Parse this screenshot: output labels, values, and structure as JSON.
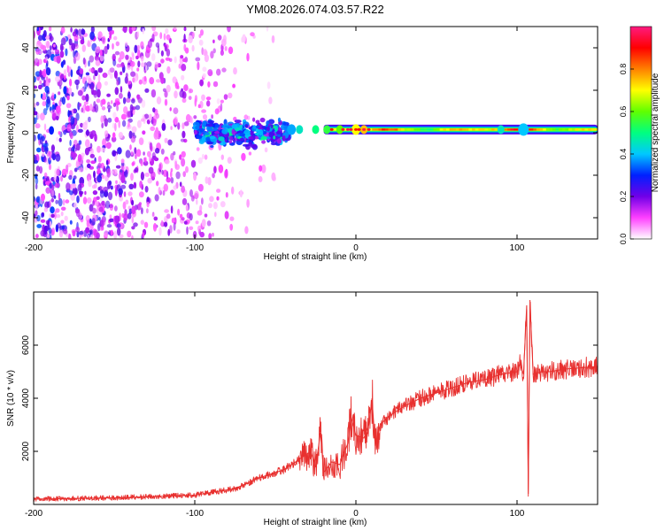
{
  "title": "YM08.2026.074.03.57.R22",
  "chart_data": [
    {
      "type": "heatmap",
      "xlabel": "Height of straight line (km)",
      "ylabel": "Frequency (Hz)",
      "xlim": [
        -200,
        150
      ],
      "ylim": [
        -50,
        50
      ],
      "xticks": [
        -200,
        -100,
        0,
        100
      ],
      "yticks": [
        -40,
        -20,
        0,
        20,
        40
      ],
      "xtick_labels": [
        "-200",
        "-100",
        "0",
        "100"
      ],
      "ytick_labels": [
        "-40",
        "-20",
        "0",
        "20",
        "40"
      ],
      "colorbar": {
        "label": "Normalized spectral amplitude",
        "range": [
          0,
          1
        ],
        "ticks": [
          0.0,
          0.2,
          0.4,
          0.6,
          0.8
        ],
        "tick_labels": [
          "0.0",
          "0.2",
          "0.4",
          "0.6",
          "0.8"
        ],
        "colors": [
          "#ffffff",
          "#ff40ff",
          "#7000e8",
          "#0020ff",
          "#00c8ff",
          "#00ff80",
          "#60ff00",
          "#ffff00",
          "#ff8000",
          "#ff0000",
          "#ff1a80"
        ]
      },
      "features": [
        {
          "name": "scattered noise",
          "x_range": [
            -200,
            -40
          ],
          "freq_range": [
            -50,
            50
          ],
          "amplitude": 0.15
        },
        {
          "name": "onset burst",
          "x_range": [
            -100,
            -40
          ],
          "freq_range": [
            -8,
            8
          ],
          "amplitude": 0.35
        },
        {
          "name": "carrier line",
          "x_range": [
            -20,
            150
          ],
          "center_freq": 1.5,
          "amplitude": 0.9
        }
      ]
    },
    {
      "type": "line",
      "xlabel": "Height of straight line (km)",
      "ylabel": "SNR (10 * v/v)",
      "xlim": [
        -200,
        150
      ],
      "ylim": [
        0,
        8000
      ],
      "xticks": [
        -200,
        -100,
        0,
        100
      ],
      "yticks": [
        2000,
        4000,
        6000
      ],
      "xtick_labels": [
        "-200",
        "-100",
        "0",
        "100"
      ],
      "ytick_labels": [
        "2000",
        "4000",
        "6000"
      ],
      "color": "#e8302f",
      "series": [
        {
          "name": "SNR",
          "x": [
            -200,
            -150,
            -100,
            -75,
            -60,
            -45,
            -35,
            -28,
            -25,
            -22,
            -20,
            -15,
            -10,
            -5,
            -3,
            0,
            5,
            8,
            10,
            12,
            15,
            20,
            30,
            40,
            50,
            60,
            70,
            80,
            90,
            100,
            102,
            104,
            106,
            107,
            108,
            110,
            115,
            120,
            130,
            140,
            150
          ],
          "y": [
            200,
            250,
            350,
            600,
            1000,
            1300,
            1700,
            2000,
            1400,
            2700,
            1200,
            1600,
            1500,
            2300,
            3300,
            2600,
            2500,
            3000,
            4000,
            2200,
            3000,
            3300,
            3700,
            4000,
            4200,
            4400,
            4600,
            4700,
            4900,
            5000,
            5300,
            4900,
            7500,
            400,
            7700,
            4900,
            5000,
            5000,
            5100,
            5150,
            5200
          ]
        }
      ]
    }
  ]
}
